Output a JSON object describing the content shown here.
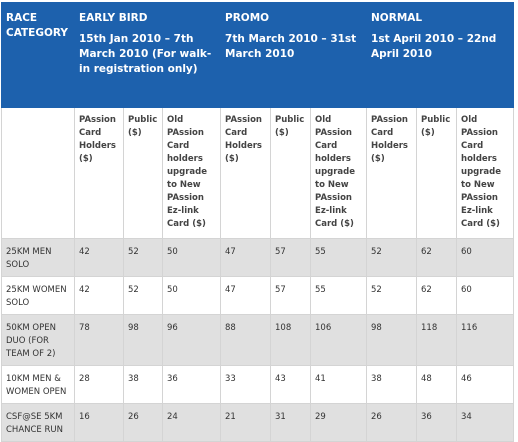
{
  "header": {
    "race_category": "RACE CATEGORY",
    "groups": [
      {
        "name": "EARLY BIRD",
        "dates": "15th Jan 2010 – 7th March 2010 (For walk-in registration only)"
      },
      {
        "name": "PROMO",
        "dates": "7th March 2010 – 31st March 2010"
      },
      {
        "name": "NORMAL",
        "dates": "1st April 2010 – 22nd April 2010"
      }
    ]
  },
  "subheaders": [
    "PAssion Card Holders ($)",
    "Public ($)",
    "Old PAssion Card holders upgrade to New PAssion Ez-link Card ($)",
    "PAssion Card Holders ($)",
    "Public ($)",
    "Old PAssion Card holders upgrade to New PAssion Ez-link Card ($)",
    "PAssion Card Holders ($)",
    "Public ($)",
    "Old PAssion Card holders upgrade to New PAssion Ez-link Card ($)"
  ],
  "rows": [
    {
      "category": "25KM MEN SOLO",
      "values": [
        42,
        52,
        50,
        47,
        57,
        55,
        52,
        62,
        60
      ]
    },
    {
      "category": "25KM WOMEN SOLO",
      "values": [
        42,
        52,
        50,
        47,
        57,
        55,
        52,
        62,
        60
      ]
    },
    {
      "category": "50KM OPEN DUO (FOR TEAM OF 2)",
      "values": [
        78,
        98,
        96,
        88,
        108,
        106,
        98,
        118,
        116
      ]
    },
    {
      "category": "10KM MEN & WOMEN OPEN",
      "values": [
        28,
        38,
        36,
        33,
        43,
        41,
        38,
        48,
        46
      ]
    },
    {
      "category": "CSF@SE 5KM CHANCE RUN",
      "values": [
        16,
        26,
        24,
        21,
        31,
        29,
        26,
        36,
        34
      ]
    }
  ]
}
